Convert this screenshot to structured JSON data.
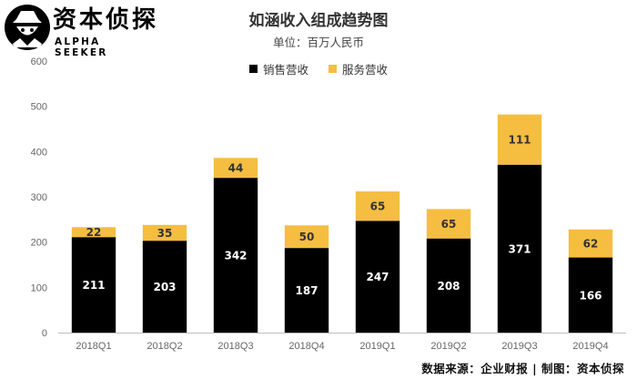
{
  "brand": {
    "name": "资本侦探",
    "tagline": "ALPHA SEEKER"
  },
  "chart_data": {
    "type": "bar",
    "stacked": true,
    "title": "如涵收入组成趋势图",
    "subtitle": "单位：百万人民币",
    "categories": [
      "2018Q1",
      "2018Q2",
      "2018Q3",
      "2018Q4",
      "2019Q1",
      "2019Q2",
      "2019Q3",
      "2019Q4"
    ],
    "series": [
      {
        "name": "销售营收",
        "color": "#000000",
        "label_color": "#ffffff",
        "values": [
          211,
          203,
          342,
          187,
          247,
          208,
          371,
          166
        ]
      },
      {
        "name": "服务营收",
        "color": "#F5BE41",
        "label_color": "#333333",
        "values": [
          22,
          35,
          44,
          50,
          65,
          65,
          111,
          62
        ]
      }
    ],
    "ylim": [
      0,
      600
    ],
    "yticks": [
      0,
      100,
      200,
      300,
      400,
      500,
      600
    ],
    "grid": false,
    "legend_position": "top-center"
  },
  "source": "数据来源：企业财报 | 制图：资本侦探"
}
